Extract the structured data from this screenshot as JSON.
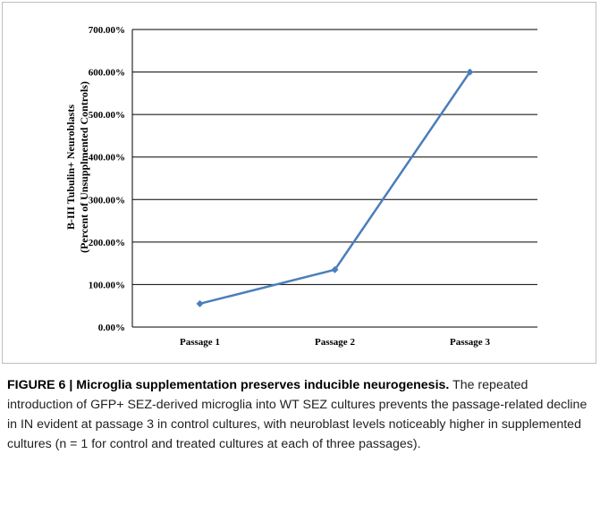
{
  "chart_data": {
    "type": "line",
    "categories": [
      "Passage 1",
      "Passage 2",
      "Passage 3"
    ],
    "values": [
      55,
      135,
      600
    ],
    "color": "#4a7ebb",
    "ylabel": [
      "B-III Tubulin+ Neuroblasts",
      "(Percent of Unsupplmented Controls)"
    ],
    "ylim": [
      0,
      700
    ],
    "yticks": [
      {
        "value": 0,
        "label": "0.00%"
      },
      {
        "value": 100,
        "label": "100.00%"
      },
      {
        "value": 200,
        "label": "200.00%"
      },
      {
        "value": 300,
        "label": "300.00%"
      },
      {
        "value": 400,
        "label": "400.00%"
      },
      {
        "value": 500,
        "label": "500.00%"
      },
      {
        "value": 600,
        "label": "600.00%"
      },
      {
        "value": 700,
        "label": "700.00%"
      }
    ],
    "grid": true
  },
  "caption": {
    "title": "FIGURE 6 | Microglia supplementation preserves inducible neurogenesis.",
    "text": " The repeated introduction of GFP+ SEZ-derived microglia into WT SEZ cultures prevents the passage-related decline in IN evident at passage 3 in control cultures, with neuroblast levels noticeably higher in supplemented cultures (n = 1 for control and treated cultures at each of three passages)."
  }
}
